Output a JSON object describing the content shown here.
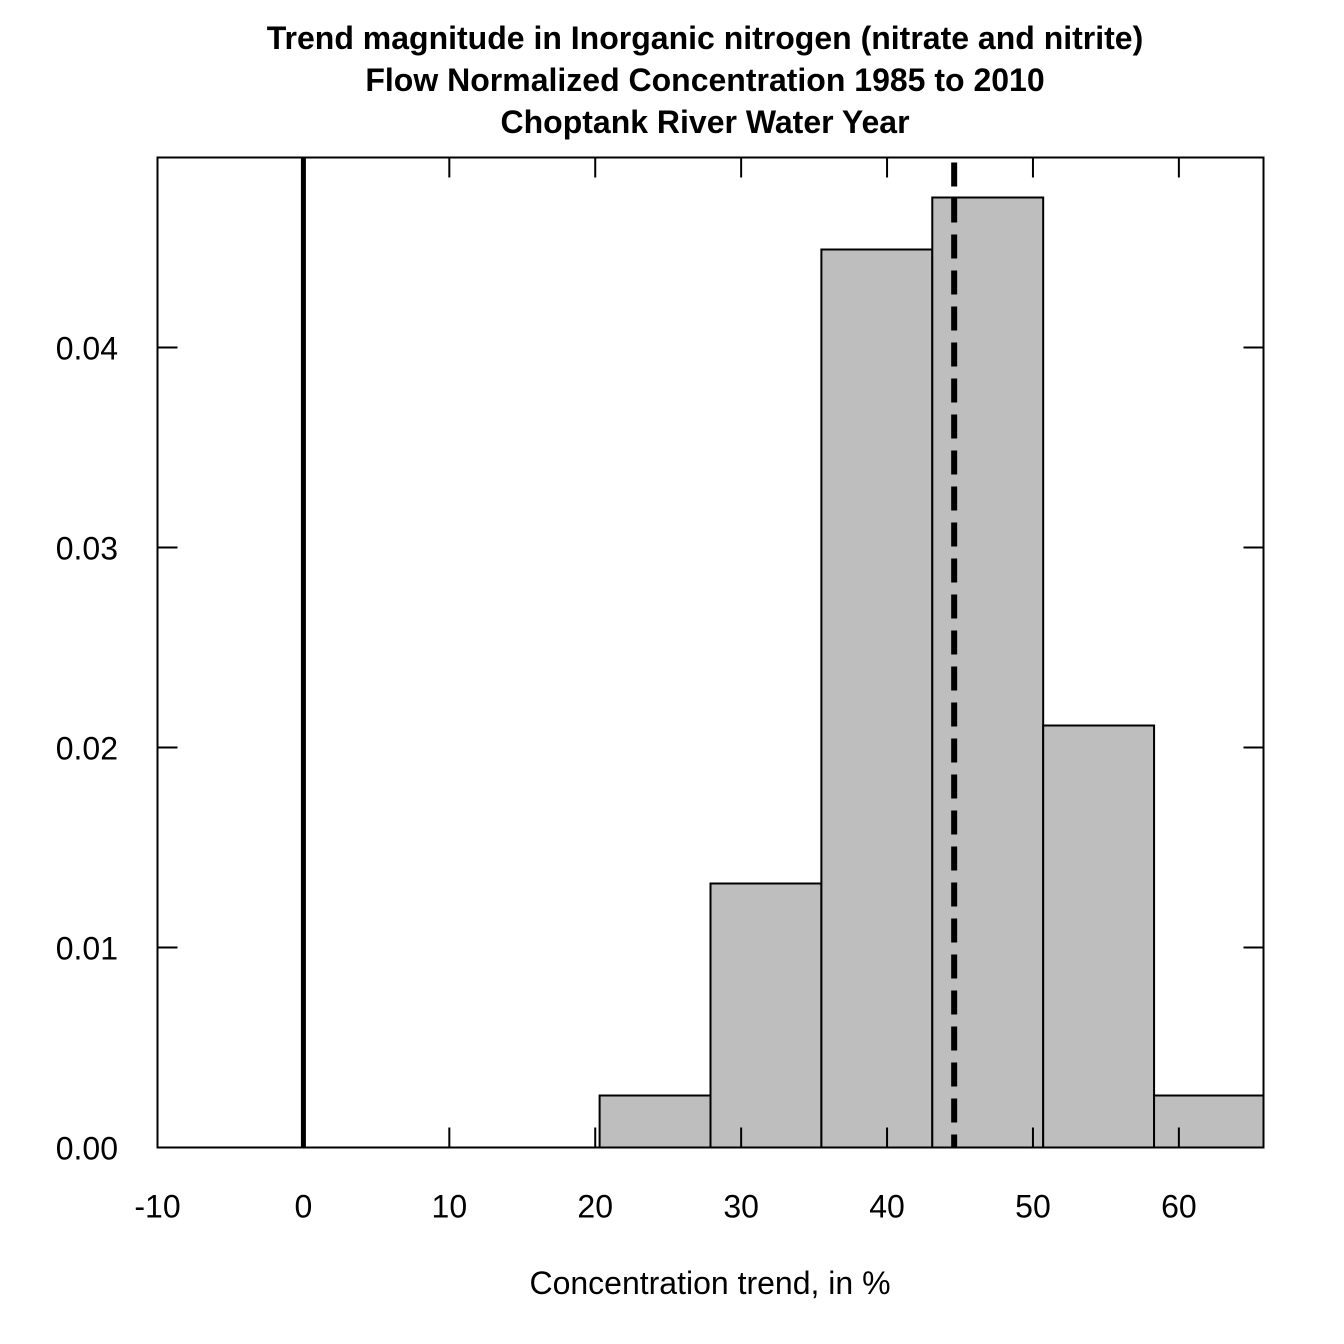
{
  "chart_data": {
    "type": "bar",
    "title": [
      "Trend magnitude in Inorganic nitrogen (nitrate and nitrite)",
      "Flow Normalized Concentration 1985 to 2010",
      "Choptank River Water Year"
    ],
    "xlabel": "Concentration trend, in %",
    "ylabel": "",
    "xlim": [
      -10,
      65.8
    ],
    "ylim": [
      0,
      0.0495
    ],
    "xticks": [
      -10,
      0,
      10,
      20,
      30,
      40,
      50,
      60
    ],
    "xtick_labels": [
      "-10",
      "0",
      "10",
      "20",
      "30",
      "40",
      "50",
      "60"
    ],
    "yticks": [
      0,
      0.01,
      0.02,
      0.03,
      0.04
    ],
    "ytick_labels": [
      "0.00",
      "0.01",
      "0.02",
      "0.03",
      "0.04"
    ],
    "bins": [
      {
        "start": 20.3,
        "end": 27.9,
        "value": 0.0026
      },
      {
        "start": 27.9,
        "end": 35.5,
        "value": 0.0132
      },
      {
        "start": 35.5,
        "end": 43.1,
        "value": 0.0449
      },
      {
        "start": 43.1,
        "end": 50.7,
        "value": 0.0475
      },
      {
        "start": 50.7,
        "end": 58.3,
        "value": 0.0211
      },
      {
        "start": 58.3,
        "end": 65.8,
        "value": 0.0026
      }
    ],
    "reference_line_x": 0,
    "estimate_line_x": 44.6,
    "bar_color": "#bebebe"
  }
}
